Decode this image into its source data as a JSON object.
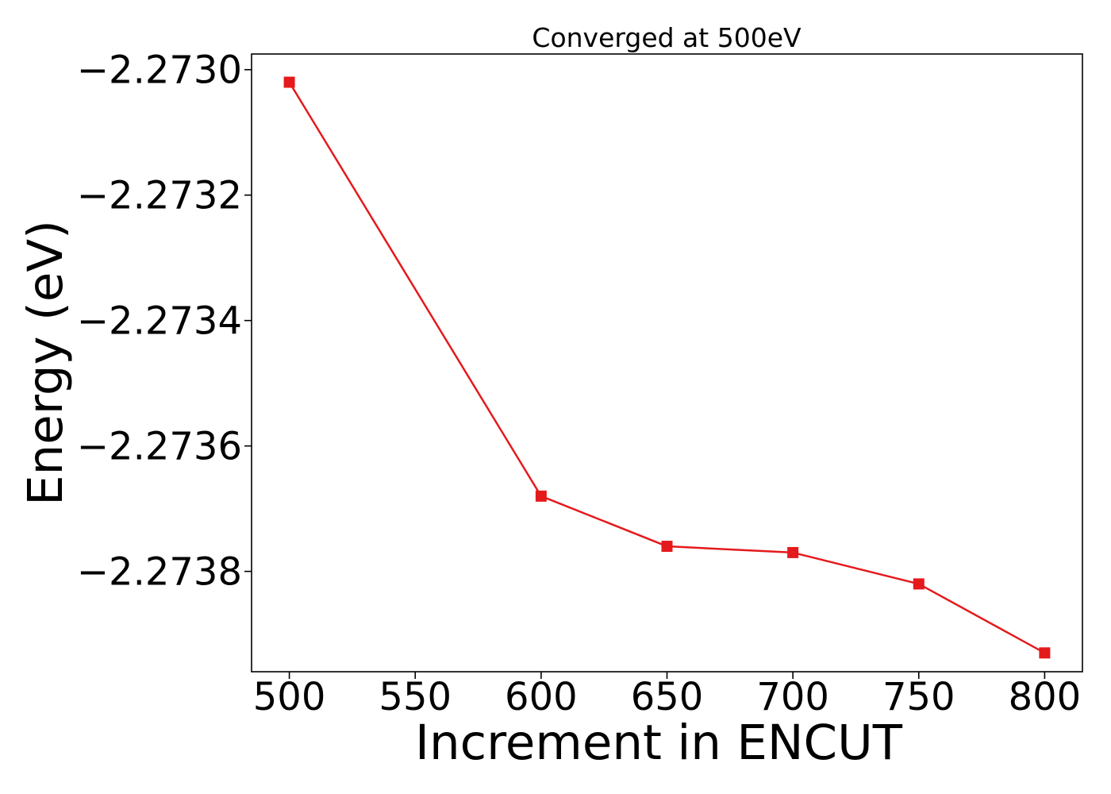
{
  "chart_data": {
    "type": "line",
    "title": "Converged at 500eV",
    "xlabel": "Increment in ENCUT",
    "ylabel": "Energy (eV)",
    "x": [
      500,
      600,
      650,
      700,
      750,
      800
    ],
    "series": [
      {
        "values": [
          -2.27302,
          -2.27368,
          -2.27376,
          -2.27377,
          -2.27382,
          -2.27393
        ],
        "color": "#e41a1c",
        "marker": "square"
      }
    ],
    "xlim": [
      485,
      815
    ],
    "ylim": [
      -2.27396,
      -2.272975
    ],
    "x_ticks": [
      500,
      550,
      600,
      650,
      700,
      750,
      800
    ],
    "x_tick_labels": [
      "500",
      "550",
      "600",
      "650",
      "700",
      "750",
      "800"
    ],
    "y_ticks": [
      -2.273,
      -2.2732,
      -2.2734,
      -2.2736,
      -2.2738
    ],
    "y_tick_labels": [
      "−2.2730",
      "−2.2732",
      "−2.2734",
      "−2.2736",
      "−2.2738"
    ],
    "grid": false,
    "legend": "none"
  }
}
